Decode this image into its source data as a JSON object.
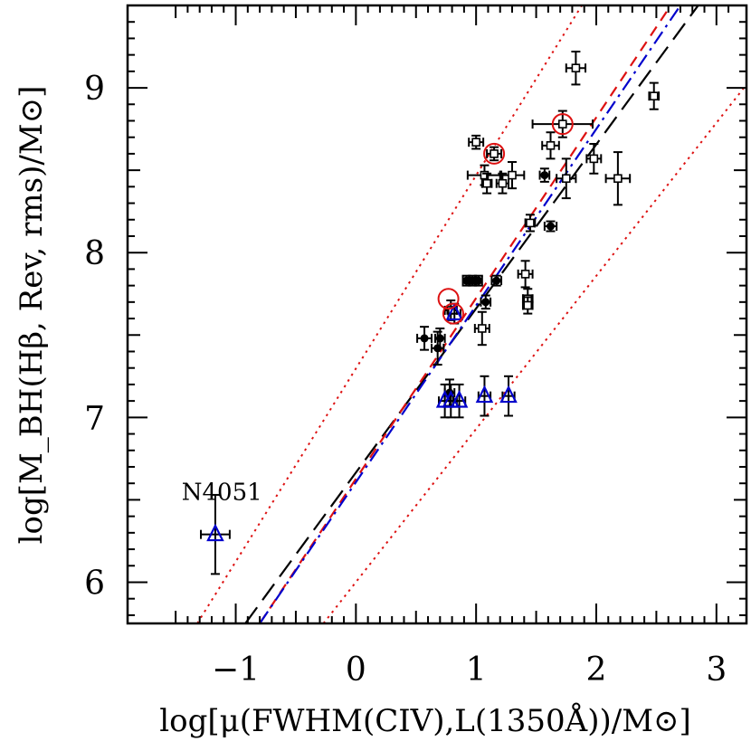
{
  "chart_data": {
    "type": "scatter",
    "title": "",
    "xlabel": "log[μ(FWHM(CIV),L(1350Å))/M⊙]",
    "ylabel": "log[M_BH(Hβ, Rev, rms)/M⊙]",
    "xlim": [
      -1.9,
      3.25
    ],
    "ylim": [
      5.75,
      9.5
    ],
    "x_ticks": [
      {
        "value": -1,
        "label": "−1"
      },
      {
        "value": 0,
        "label": "0"
      },
      {
        "value": 1,
        "label": "1"
      },
      {
        "value": 2,
        "label": "2"
      },
      {
        "value": 3,
        "label": "3"
      }
    ],
    "y_ticks": [
      {
        "value": 6,
        "label": "6"
      },
      {
        "value": 7,
        "label": "7"
      },
      {
        "value": 8,
        "label": "8"
      },
      {
        "value": 9,
        "label": "9"
      }
    ],
    "grid": false,
    "annotations": [
      {
        "text": "N4051",
        "x": -1.45,
        "y": 6.5
      }
    ],
    "series": [
      {
        "marker": "open-square",
        "color": "#000000",
        "points": [
          {
            "x": 1.83,
            "y": 9.12,
            "xerr": 0.08,
            "yerr": 0.1
          },
          {
            "x": 1.72,
            "y": 8.78,
            "xerr": 0.25,
            "yerr": 0.08
          },
          {
            "x": 1.62,
            "y": 8.65,
            "xerr": 0.07,
            "yerr": 0.08
          },
          {
            "x": 2.48,
            "y": 8.95,
            "xerr": 0.04,
            "yerr": 0.08
          },
          {
            "x": 1.0,
            "y": 8.67,
            "xerr": 0.06,
            "yerr": 0.04
          },
          {
            "x": 1.15,
            "y": 8.6,
            "xerr": 0.06,
            "yerr": 0.04
          },
          {
            "x": 1.98,
            "y": 8.57,
            "xerr": 0.06,
            "yerr": 0.09
          },
          {
            "x": 1.07,
            "y": 8.47,
            "xerr": 0.14,
            "yerr": 0.06
          },
          {
            "x": 1.3,
            "y": 8.47,
            "xerr": 0.1,
            "yerr": 0.08
          },
          {
            "x": 1.75,
            "y": 8.45,
            "xerr": 0.08,
            "yerr": 0.12
          },
          {
            "x": 2.18,
            "y": 8.45,
            "xerr": 0.1,
            "yerr": 0.16
          },
          {
            "x": 1.09,
            "y": 8.42,
            "xerr": 0.04,
            "yerr": 0.06
          },
          {
            "x": 1.22,
            "y": 8.42,
            "xerr": 0.05,
            "yerr": 0.06
          },
          {
            "x": 1.45,
            "y": 8.18,
            "xerr": 0.04,
            "yerr": 0.05
          },
          {
            "x": 1.41,
            "y": 7.87,
            "xerr": 0.06,
            "yerr": 0.08
          },
          {
            "x": 1.43,
            "y": 7.72,
            "xerr": 0.04,
            "yerr": 0.06
          },
          {
            "x": 1.43,
            "y": 7.68,
            "xerr": 0.04,
            "yerr": 0.05
          },
          {
            "x": 1.05,
            "y": 7.54,
            "xerr": 0.06,
            "yerr": 0.1
          },
          {
            "x": 0.79,
            "y": 7.65,
            "xerr": 0.05,
            "yerr": 0.06
          }
        ]
      },
      {
        "marker": "filled-circle",
        "color": "#000000",
        "points": [
          {
            "x": 1.57,
            "y": 8.47,
            "xerr": 0.04,
            "yerr": 0.04
          },
          {
            "x": 1.62,
            "y": 8.16,
            "xerr": 0.05,
            "yerr": 0.03
          },
          {
            "x": 0.92,
            "y": 7.83,
            "xerr": 0.03,
            "yerr": 0.03
          },
          {
            "x": 0.97,
            "y": 7.83,
            "xerr": 0.03,
            "yerr": 0.03
          },
          {
            "x": 1.02,
            "y": 7.83,
            "xerr": 0.03,
            "yerr": 0.03
          },
          {
            "x": 1.17,
            "y": 7.83,
            "xerr": 0.04,
            "yerr": 0.03
          },
          {
            "x": 1.08,
            "y": 7.7,
            "xerr": 0.04,
            "yerr": 0.04
          },
          {
            "x": 0.57,
            "y": 7.48,
            "xerr": 0.06,
            "yerr": 0.07
          },
          {
            "x": 0.7,
            "y": 7.48,
            "xerr": 0.04,
            "yerr": 0.06
          },
          {
            "x": 0.68,
            "y": 7.42,
            "xerr": 0.05,
            "yerr": 0.1
          },
          {
            "x": 0.78,
            "y": 7.15,
            "xerr": 0.04,
            "yerr": 0.08
          }
        ]
      },
      {
        "marker": "open-triangle",
        "color": "#0000cc",
        "points": [
          {
            "x": 0.82,
            "y": 7.63,
            "xerr": 0.05,
            "yerr": 0.06
          },
          {
            "x": 0.74,
            "y": 7.1,
            "xerr": 0.05,
            "yerr": 0.1
          },
          {
            "x": 0.79,
            "y": 7.1,
            "xerr": 0.05,
            "yerr": 0.1
          },
          {
            "x": 0.86,
            "y": 7.1,
            "xerr": 0.05,
            "yerr": 0.1
          },
          {
            "x": 1.07,
            "y": 7.13,
            "xerr": 0.05,
            "yerr": 0.12
          },
          {
            "x": 1.27,
            "y": 7.13,
            "xerr": 0.05,
            "yerr": 0.12
          },
          {
            "x": -1.17,
            "y": 6.29,
            "xerr": 0.12,
            "yerr": 0.24
          }
        ]
      },
      {
        "marker": "red-circle-highlight",
        "color": "#dd1111",
        "points": [
          {
            "x": 1.72,
            "y": 8.78
          },
          {
            "x": 1.15,
            "y": 8.6
          },
          {
            "x": 0.77,
            "y": 7.72
          },
          {
            "x": 0.81,
            "y": 7.63
          }
        ]
      }
    ],
    "lines": [
      {
        "style": "long-dash",
        "color": "#000000",
        "x1": -0.92,
        "y1": 5.75,
        "x2": 3.25,
        "y2": 9.9
      },
      {
        "style": "dash",
        "color": "#dd1111",
        "x1": -0.8,
        "y1": 5.75,
        "x2": 2.62,
        "y2": 9.5
      },
      {
        "style": "dash-dot",
        "color": "#0000cc",
        "x1": -0.8,
        "y1": 5.75,
        "x2": 2.7,
        "y2": 9.5
      },
      {
        "style": "dotted",
        "color": "#dd1111",
        "x1": -1.32,
        "y1": 5.75,
        "x2": 1.88,
        "y2": 9.5
      },
      {
        "style": "dotted",
        "color": "#dd1111",
        "x1": -0.27,
        "y1": 5.75,
        "x2": 3.25,
        "y2": 9.02
      }
    ]
  }
}
